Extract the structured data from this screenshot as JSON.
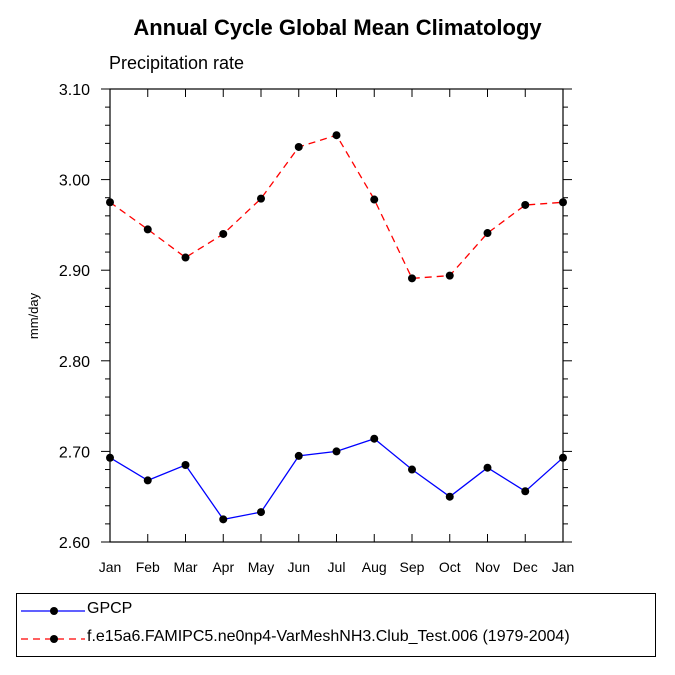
{
  "chart_data": {
    "type": "line",
    "title": "Annual Cycle Global Mean Climatology",
    "subtitle": "Precipitation rate",
    "xlabel": "",
    "ylabel": "mm/day",
    "categories": [
      "Jan",
      "Feb",
      "Mar",
      "Apr",
      "May",
      "Jun",
      "Jul",
      "Aug",
      "Sep",
      "Oct",
      "Nov",
      "Dec",
      "Jan"
    ],
    "ylim": [
      2.6,
      3.1
    ],
    "yticks": [
      "2.60",
      "2.70",
      "2.80",
      "2.90",
      "3.00",
      "3.10"
    ],
    "grid": false,
    "legend_position": "bottom",
    "series": [
      {
        "name": "GPCP",
        "color": "#0000ff",
        "dash": "solid",
        "values": [
          2.693,
          2.668,
          2.685,
          2.625,
          2.633,
          2.695,
          2.7,
          2.714,
          2.68,
          2.65,
          2.682,
          2.656,
          2.693
        ]
      },
      {
        "name": "f.e15a6.FAMIPC5.ne0np4-VarMeshNH3.Club_Test.006 (1979-2004)",
        "color": "#ff0000",
        "dash": "dashed",
        "values": [
          2.975,
          2.945,
          2.914,
          2.94,
          2.979,
          3.036,
          3.049,
          2.978,
          2.891,
          2.894,
          2.941,
          2.972,
          2.975
        ]
      }
    ]
  }
}
